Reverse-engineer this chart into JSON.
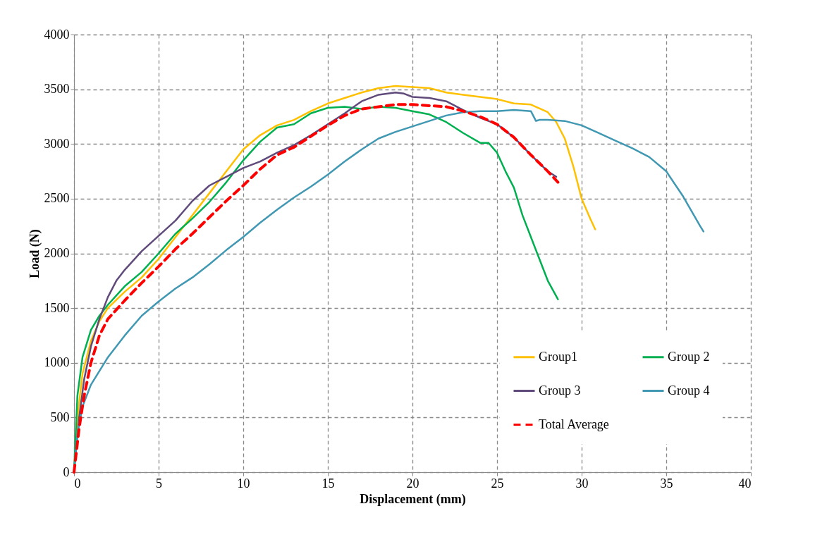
{
  "chart_data": {
    "type": "line",
    "xlabel": "Displacement (mm)",
    "ylabel": "Load (N)",
    "xlim": [
      0,
      40
    ],
    "xticks": [
      0,
      5,
      10,
      15,
      20,
      25,
      30,
      35,
      40
    ],
    "ylim": [
      0,
      4000
    ],
    "yticks": [
      0,
      500,
      1000,
      1500,
      2000,
      2500,
      3000,
      3500,
      4000
    ],
    "grid": true,
    "legend": "bottom right",
    "series": [
      {
        "name": "Group1",
        "color": "#ffc000",
        "line_style": "solid",
        "x": [
          0,
          0.2,
          0.5,
          1,
          1.5,
          2,
          3,
          4,
          5,
          6,
          7,
          8,
          9,
          10,
          11,
          12,
          13,
          14,
          15,
          16,
          17,
          18,
          19,
          20,
          21,
          22,
          23,
          24,
          25,
          26,
          27,
          28,
          28.5,
          29,
          29.5,
          30,
          30.5,
          30.8
        ],
        "values": [
          0,
          500,
          900,
          1200,
          1380,
          1500,
          1650,
          1780,
          1950,
          2150,
          2350,
          2550,
          2750,
          2950,
          3080,
          3170,
          3220,
          3300,
          3370,
          3420,
          3470,
          3510,
          3530,
          3520,
          3510,
          3470,
          3450,
          3430,
          3410,
          3370,
          3360,
          3290,
          3200,
          3050,
          2800,
          2500,
          2320,
          2220
        ]
      },
      {
        "name": "Group 2",
        "color": "#00b050",
        "line_style": "solid",
        "x": [
          0,
          0.2,
          0.5,
          1,
          1.5,
          2,
          3,
          4,
          5,
          6,
          7,
          8,
          9,
          10,
          11,
          12,
          13,
          14,
          15,
          16,
          17,
          18,
          19,
          20,
          21,
          22,
          23,
          24,
          24.5,
          25,
          25.5,
          26,
          26.5,
          27,
          27.5,
          28,
          28.6
        ],
        "values": [
          0,
          700,
          1050,
          1300,
          1430,
          1530,
          1700,
          1830,
          2000,
          2180,
          2320,
          2470,
          2650,
          2850,
          3020,
          3150,
          3180,
          3280,
          3330,
          3340,
          3320,
          3340,
          3330,
          3300,
          3270,
          3200,
          3100,
          3010,
          3010,
          2920,
          2750,
          2600,
          2350,
          2150,
          1950,
          1750,
          1580
        ]
      },
      {
        "name": "Group 3",
        "color": "#604a7b",
        "line_style": "solid",
        "x": [
          0,
          0.3,
          0.6,
          1,
          1.5,
          2,
          2.5,
          3,
          4,
          5,
          6,
          7,
          8,
          9,
          10,
          11,
          12,
          13,
          14,
          15,
          16,
          17,
          18,
          19,
          19.5,
          20,
          21,
          22,
          23,
          24,
          25,
          26,
          27,
          28,
          28.5
        ],
        "values": [
          0,
          500,
          850,
          1150,
          1400,
          1600,
          1750,
          1850,
          2020,
          2160,
          2300,
          2480,
          2620,
          2700,
          2780,
          2840,
          2920,
          2990,
          3080,
          3180,
          3280,
          3390,
          3450,
          3470,
          3460,
          3430,
          3420,
          3390,
          3310,
          3240,
          3180,
          3060,
          2900,
          2750,
          2700
        ]
      },
      {
        "name": "Group 4",
        "color": "#4198b2",
        "line_style": "solid",
        "x": [
          0,
          0.2,
          0.5,
          1,
          2,
          3,
          4,
          5,
          6,
          7,
          8,
          9,
          10,
          11,
          12,
          13,
          14,
          15,
          16,
          17,
          18,
          19,
          20,
          21,
          22,
          23,
          24,
          25,
          26,
          27,
          27.3,
          27.5,
          28,
          29,
          30,
          31,
          32,
          33,
          34,
          35,
          36,
          37,
          37.2
        ],
        "values": [
          0,
          350,
          600,
          800,
          1050,
          1250,
          1430,
          1560,
          1680,
          1780,
          1900,
          2030,
          2150,
          2280,
          2400,
          2510,
          2610,
          2720,
          2840,
          2950,
          3050,
          3110,
          3160,
          3210,
          3260,
          3290,
          3300,
          3300,
          3310,
          3300,
          3210,
          3220,
          3220,
          3210,
          3170,
          3100,
          3030,
          2960,
          2880,
          2750,
          2520,
          2250,
          2200
        ]
      },
      {
        "name": "Total Average",
        "color": "#ff0000",
        "line_style": "dashed",
        "x": [
          0,
          0.3,
          0.6,
          1,
          1.5,
          2,
          3,
          4,
          5,
          6,
          7,
          8,
          9,
          10,
          11,
          12,
          13,
          14,
          15,
          16,
          17,
          18,
          19,
          20,
          21,
          22,
          23,
          24,
          25,
          26,
          27,
          28,
          28.6
        ],
        "values": [
          0,
          400,
          700,
          1000,
          1250,
          1400,
          1570,
          1730,
          1880,
          2040,
          2180,
          2330,
          2480,
          2620,
          2770,
          2900,
          2970,
          3070,
          3170,
          3260,
          3320,
          3340,
          3360,
          3360,
          3350,
          3340,
          3300,
          3250,
          3180,
          3060,
          2900,
          2750,
          2650
        ]
      }
    ]
  }
}
